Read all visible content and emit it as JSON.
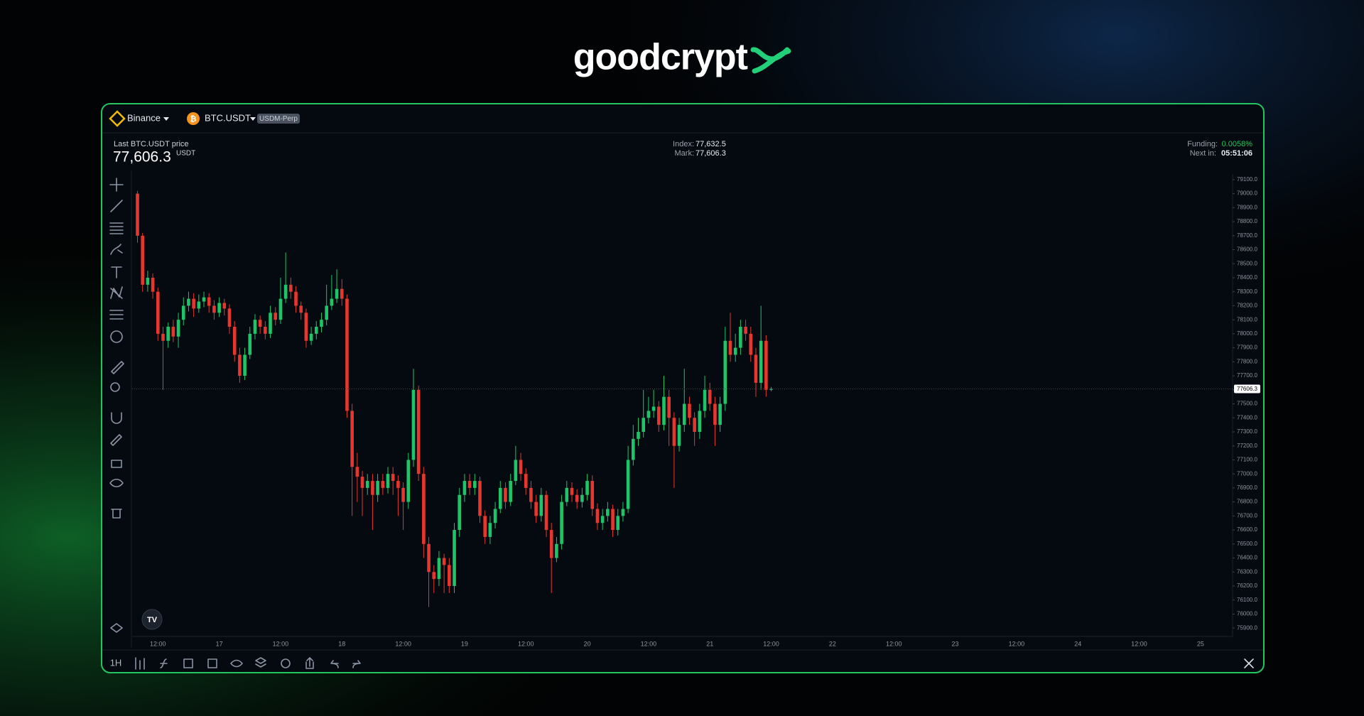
{
  "header": {
    "logo": "goodcrypt",
    "exchange": "Binance",
    "pair": "BTC.USDT",
    "contract": "USDM-Perp",
    "last_price_caption": "Last BTC.USDT price",
    "last_price": "77,606.3",
    "last_price_unit": "USDT",
    "index_label": "Index:",
    "index_value": "77,632.5",
    "mark_label": "Mark:",
    "mark_value": "77,606.3",
    "funding_label": "Funding:",
    "funding_value": "0.0058%",
    "next_label": "Next in:",
    "next_value": "05:51:06"
  },
  "toolbar": {
    "interval": "1H"
  },
  "chart_data": {
    "type": "candlestick",
    "up_color": "#1fc46a",
    "down_color": "#e5372f",
    "ylim": [
      75840,
      79140
    ],
    "yticks": [
      {
        "value": 75900,
        "label": "75900.0"
      },
      {
        "value": 76000,
        "label": "76000.0"
      },
      {
        "value": 76100,
        "label": "76100.0"
      },
      {
        "value": 76200,
        "label": "76200.0"
      },
      {
        "value": 76300,
        "label": "76300.0"
      },
      {
        "value": 76400,
        "label": "76400.0"
      },
      {
        "value": 76500,
        "label": "76500.0"
      },
      {
        "value": 76600,
        "label": "76600.0"
      },
      {
        "value": 76700,
        "label": "76700.0"
      },
      {
        "value": 76800,
        "label": "76800.0"
      },
      {
        "value": 76900,
        "label": "76900.0"
      },
      {
        "value": 77000,
        "label": "77000.0"
      },
      {
        "value": 77100,
        "label": "77100.0"
      },
      {
        "value": 77200,
        "label": "77200.0"
      },
      {
        "value": 77300,
        "label": "77300.0"
      },
      {
        "value": 77400,
        "label": "77400.0"
      },
      {
        "value": 77500,
        "label": "77500.0"
      },
      {
        "value": 77600,
        "label": "77600.0"
      },
      {
        "value": 77700,
        "label": "77700.0"
      },
      {
        "value": 77800,
        "label": "77800.0"
      },
      {
        "value": 77900,
        "label": "77900.0"
      },
      {
        "value": 78000,
        "label": "78000.0"
      },
      {
        "value": 78100,
        "label": "78100.0"
      },
      {
        "value": 78200,
        "label": "78200.0"
      },
      {
        "value": 78300,
        "label": "78300.0"
      },
      {
        "value": 78400,
        "label": "78400.0"
      },
      {
        "value": 78500,
        "label": "78500.0"
      },
      {
        "value": 78600,
        "label": "78600.0"
      },
      {
        "value": 78700,
        "label": "78700.0"
      },
      {
        "value": 78800,
        "label": "78800.0"
      },
      {
        "value": 78900,
        "label": "78900.0"
      },
      {
        "value": 79000,
        "label": "79000.0"
      },
      {
        "value": 79100,
        "label": "79100.0"
      }
    ],
    "xtick_labels": [
      "12:00",
      "17",
      "12:00",
      "18",
      "12:00",
      "19",
      "12:00",
      "20",
      "12:00",
      "21",
      "12:00",
      "22",
      "12:00",
      "23",
      "12:00",
      "24",
      "12:00",
      "25"
    ],
    "last_price": 77606.3,
    "candles": [
      [
        79000,
        79020,
        78650,
        78700
      ],
      [
        78700,
        78720,
        78300,
        78350
      ],
      [
        78350,
        78450,
        78300,
        78400
      ],
      [
        78400,
        78430,
        78250,
        78300
      ],
      [
        78300,
        78330,
        77950,
        78000
      ],
      [
        78000,
        78050,
        77600,
        77950
      ],
      [
        77950,
        78080,
        77900,
        78050
      ],
      [
        78050,
        78100,
        77940,
        77980
      ],
      [
        77980,
        78150,
        77900,
        78100
      ],
      [
        78100,
        78260,
        78060,
        78200
      ],
      [
        78200,
        78300,
        78160,
        78250
      ],
      [
        78250,
        78290,
        78120,
        78180
      ],
      [
        78180,
        78280,
        78150,
        78230
      ],
      [
        78230,
        78300,
        78190,
        78260
      ],
      [
        78260,
        78290,
        78150,
        78200
      ],
      [
        78200,
        78240,
        78100,
        78150
      ],
      [
        78150,
        78260,
        78120,
        78220
      ],
      [
        78220,
        78250,
        78130,
        78180
      ],
      [
        78180,
        78210,
        78000,
        78050
      ],
      [
        78050,
        78090,
        77800,
        77850
      ],
      [
        77850,
        77900,
        77650,
        77700
      ],
      [
        77700,
        77900,
        77670,
        77850
      ],
      [
        77850,
        78050,
        77820,
        78000
      ],
      [
        78000,
        78140,
        77960,
        78100
      ],
      [
        78100,
        78130,
        78000,
        78050
      ],
      [
        78050,
        78090,
        77960,
        78000
      ],
      [
        78000,
        78200,
        77970,
        78150
      ],
      [
        78150,
        78190,
        78060,
        78100
      ],
      [
        78100,
        78400,
        78070,
        78250
      ],
      [
        78250,
        78580,
        78220,
        78350
      ],
      [
        78350,
        78400,
        78250,
        78300
      ],
      [
        78300,
        78340,
        78150,
        78200
      ],
      [
        78200,
        78230,
        78100,
        78150
      ],
      [
        78150,
        78180,
        77900,
        77950
      ],
      [
        77950,
        78050,
        77920,
        78000
      ],
      [
        78000,
        78090,
        77960,
        78050
      ],
      [
        78050,
        78150,
        78010,
        78100
      ],
      [
        78100,
        78350,
        78060,
        78200
      ],
      [
        78200,
        78420,
        78170,
        78250
      ],
      [
        78250,
        78460,
        78220,
        78320
      ],
      [
        78320,
        78390,
        78200,
        78250
      ],
      [
        78250,
        78280,
        77400,
        77450
      ],
      [
        77450,
        77500,
        76700,
        77050
      ],
      [
        77050,
        77150,
        76800,
        76980
      ],
      [
        76980,
        77020,
        76700,
        76900
      ],
      [
        76900,
        77000,
        76850,
        76950
      ],
      [
        76950,
        77000,
        76600,
        76850
      ],
      [
        76850,
        77000,
        76800,
        76950
      ],
      [
        76950,
        77000,
        76850,
        76900
      ],
      [
        76900,
        77050,
        76860,
        77000
      ],
      [
        77000,
        77050,
        76850,
        76950
      ],
      [
        76950,
        76990,
        76700,
        76900
      ],
      [
        76900,
        76940,
        76600,
        76800
      ],
      [
        76800,
        77150,
        76750,
        77100
      ],
      [
        77100,
        77750,
        77050,
        77600
      ],
      [
        77600,
        77630,
        76950,
        77000
      ],
      [
        77000,
        77050,
        76400,
        76500
      ],
      [
        76500,
        76550,
        76050,
        76300
      ],
      [
        76300,
        76350,
        76150,
        76250
      ],
      [
        76250,
        76450,
        76200,
        76400
      ],
      [
        76400,
        76430,
        76150,
        76350
      ],
      [
        76350,
        76400,
        76150,
        76200
      ],
      [
        76200,
        76650,
        76150,
        76600
      ],
      [
        76600,
        76900,
        76550,
        76850
      ],
      [
        76850,
        77000,
        76800,
        76950
      ],
      [
        76950,
        77000,
        76850,
        76900
      ],
      [
        76900,
        77000,
        76850,
        76950
      ],
      [
        76950,
        76980,
        76650,
        76700
      ],
      [
        76700,
        76740,
        76500,
        76550
      ],
      [
        76550,
        76700,
        76500,
        76650
      ],
      [
        76650,
        76800,
        76610,
        76750
      ],
      [
        76750,
        76950,
        76720,
        76900
      ],
      [
        76900,
        76940,
        76750,
        76800
      ],
      [
        76800,
        77000,
        76770,
        76950
      ],
      [
        76950,
        77200,
        76920,
        77100
      ],
      [
        77100,
        77150,
        76950,
        77000
      ],
      [
        77000,
        77040,
        76850,
        76900
      ],
      [
        76900,
        76950,
        76750,
        76800
      ],
      [
        76800,
        76850,
        76650,
        76700
      ],
      [
        76700,
        76900,
        76660,
        76850
      ],
      [
        76850,
        76880,
        76550,
        76600
      ],
      [
        76600,
        76650,
        76150,
        76400
      ],
      [
        76400,
        76550,
        76370,
        76500
      ],
      [
        76500,
        76850,
        76460,
        76800
      ],
      [
        76800,
        76950,
        76770,
        76900
      ],
      [
        76900,
        76940,
        76800,
        76850
      ],
      [
        76850,
        76890,
        76750,
        76800
      ],
      [
        76800,
        76900,
        76760,
        76850
      ],
      [
        76850,
        77000,
        76810,
        76950
      ],
      [
        76950,
        76990,
        76700,
        76750
      ],
      [
        76750,
        76790,
        76600,
        76650
      ],
      [
        76650,
        76750,
        76600,
        76700
      ],
      [
        76700,
        76800,
        76660,
        76750
      ],
      [
        76750,
        76780,
        76550,
        76600
      ],
      [
        76600,
        76750,
        76560,
        76700
      ],
      [
        76700,
        76800,
        76660,
        76750
      ],
      [
        76750,
        77200,
        76720,
        77100
      ],
      [
        77100,
        77350,
        77060,
        77250
      ],
      [
        77250,
        77400,
        77200,
        77300
      ],
      [
        77300,
        77600,
        77260,
        77400
      ],
      [
        77400,
        77550,
        77360,
        77450
      ],
      [
        77450,
        77600,
        77400,
        77480
      ],
      [
        77480,
        77520,
        77300,
        77350
      ],
      [
        77350,
        77700,
        77310,
        77550
      ],
      [
        77550,
        77600,
        77200,
        77400
      ],
      [
        77400,
        77440,
        76900,
        77200
      ],
      [
        77200,
        77400,
        77160,
        77350
      ],
      [
        77350,
        77750,
        77300,
        77500
      ],
      [
        77500,
        77550,
        77350,
        77400
      ],
      [
        77400,
        77440,
        77200,
        77300
      ],
      [
        77300,
        77500,
        77250,
        77450
      ],
      [
        77450,
        77700,
        77400,
        77600
      ],
      [
        77600,
        77650,
        77450,
        77500
      ],
      [
        77500,
        77550,
        77200,
        77350
      ],
      [
        77350,
        77550,
        77300,
        77500
      ],
      [
        77500,
        78050,
        77450,
        77950
      ],
      [
        77950,
        78150,
        77800,
        77850
      ],
      [
        77850,
        78000,
        77800,
        77900
      ],
      [
        77900,
        78100,
        77850,
        78050
      ],
      [
        78050,
        78100,
        77950,
        78000
      ],
      [
        78000,
        78050,
        77800,
        77850
      ],
      [
        77850,
        77900,
        77550,
        77650
      ],
      [
        77650,
        78200,
        77600,
        77950
      ],
      [
        77950,
        77990,
        77550,
        77600
      ],
      [
        77600,
        77620,
        77590,
        77606.3
      ]
    ]
  }
}
